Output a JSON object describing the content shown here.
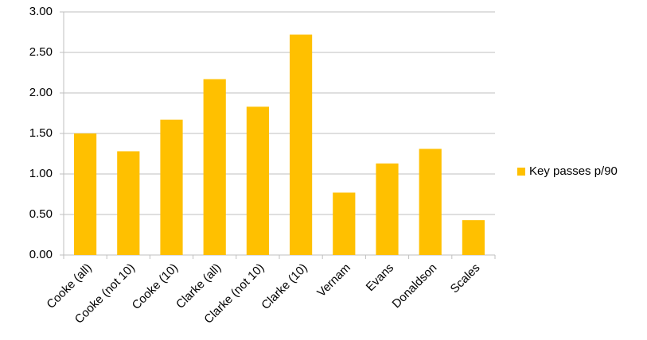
{
  "chart_data": {
    "type": "bar",
    "categories": [
      "Cooke (all)",
      "Cooke (not 10)",
      "Cooke (10)",
      "Clarke (all)",
      "Clarke (not 10)",
      "Clarke (10)",
      "Vernam",
      "Evans",
      "Donaldson",
      "Scales"
    ],
    "series": [
      {
        "name": "Key passes p/90",
        "color": "#ffc000",
        "values": [
          1.5,
          1.28,
          1.67,
          2.17,
          1.83,
          2.72,
          0.77,
          1.13,
          1.31,
          0.43
        ]
      }
    ],
    "ylim": [
      0,
      3
    ],
    "yticks": [
      {
        "value": 0,
        "label": "0.00"
      },
      {
        "value": 0.5,
        "label": "0.50"
      },
      {
        "value": 1,
        "label": "1.00"
      },
      {
        "value": 1.5,
        "label": "1.50"
      },
      {
        "value": 2,
        "label": "2.00"
      },
      {
        "value": 2.5,
        "label": "2.50"
      },
      {
        "value": 3,
        "label": "3.00"
      }
    ],
    "grid": true,
    "legend": "right"
  }
}
